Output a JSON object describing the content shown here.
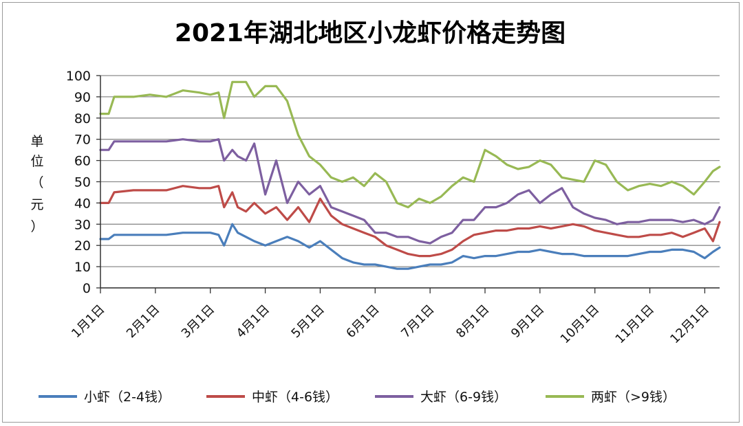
{
  "chart_data": {
    "type": "line",
    "title": "2021年湖北地区小龙虾价格走势图",
    "ylabel_chars": [
      "单",
      "位",
      "（",
      "元",
      "）"
    ],
    "ylim": [
      0,
      100
    ],
    "yticks": [
      0,
      10,
      20,
      30,
      40,
      50,
      60,
      70,
      80,
      90,
      100
    ],
    "grid": true,
    "legend_position": "bottom",
    "x_categories": [
      "1月1日",
      "2月1日",
      "3月1日",
      "4月1日",
      "5月1日",
      "6月1日",
      "7月1日",
      "8月1日",
      "9月1日",
      "10月1日",
      "11月1日",
      "12月1日"
    ],
    "x_domain": [
      0,
      11.27
    ],
    "series": [
      {
        "name": "小虾（2-4钱）",
        "color": "#4a7ebb",
        "x": [
          0,
          0.15,
          0.25,
          0.6,
          0.9,
          1.2,
          1.5,
          1.8,
          2.0,
          2.15,
          2.25,
          2.4,
          2.5,
          2.65,
          2.8,
          3.0,
          3.2,
          3.4,
          3.6,
          3.8,
          4.0,
          4.2,
          4.4,
          4.6,
          4.8,
          5.0,
          5.2,
          5.4,
          5.6,
          5.8,
          6.0,
          6.2,
          6.4,
          6.6,
          6.8,
          7.0,
          7.2,
          7.4,
          7.6,
          7.8,
          8.0,
          8.2,
          8.4,
          8.6,
          8.8,
          9.0,
          9.2,
          9.4,
          9.6,
          9.8,
          10.0,
          10.2,
          10.4,
          10.6,
          10.8,
          11.0,
          11.15,
          11.27
        ],
        "values": [
          23,
          23,
          25,
          25,
          25,
          25,
          26,
          26,
          26,
          25,
          20,
          30,
          26,
          24,
          22,
          20,
          22,
          24,
          22,
          19,
          22,
          18,
          14,
          12,
          11,
          11,
          10,
          9,
          9,
          10,
          11,
          11,
          12,
          15,
          14,
          15,
          15,
          16,
          17,
          17,
          18,
          17,
          16,
          16,
          15,
          15,
          15,
          15,
          15,
          16,
          17,
          17,
          18,
          18,
          17,
          14,
          17,
          19
        ]
      },
      {
        "name": "中虾（4-6钱）",
        "color": "#be4b48",
        "x": [
          0,
          0.15,
          0.25,
          0.6,
          0.9,
          1.2,
          1.5,
          1.8,
          2.0,
          2.15,
          2.25,
          2.4,
          2.5,
          2.65,
          2.8,
          3.0,
          3.2,
          3.4,
          3.6,
          3.8,
          4.0,
          4.2,
          4.4,
          4.6,
          4.8,
          5.0,
          5.2,
          5.4,
          5.6,
          5.8,
          6.0,
          6.2,
          6.4,
          6.6,
          6.8,
          7.0,
          7.2,
          7.4,
          7.6,
          7.8,
          8.0,
          8.2,
          8.4,
          8.6,
          8.8,
          9.0,
          9.2,
          9.4,
          9.6,
          9.8,
          10.0,
          10.2,
          10.4,
          10.6,
          10.8,
          11.0,
          11.15,
          11.27
        ],
        "values": [
          40,
          40,
          45,
          46,
          46,
          46,
          48,
          47,
          47,
          48,
          38,
          45,
          38,
          36,
          40,
          35,
          38,
          32,
          38,
          31,
          42,
          34,
          30,
          28,
          26,
          24,
          20,
          18,
          16,
          15,
          15,
          16,
          18,
          22,
          25,
          26,
          27,
          27,
          28,
          28,
          29,
          28,
          29,
          30,
          29,
          27,
          26,
          25,
          24,
          24,
          25,
          25,
          26,
          24,
          26,
          28,
          22,
          31
        ]
      },
      {
        "name": "大虾（6-9钱）",
        "color": "#7d5fa0",
        "x": [
          0,
          0.15,
          0.25,
          0.6,
          0.9,
          1.2,
          1.5,
          1.8,
          2.0,
          2.15,
          2.25,
          2.4,
          2.5,
          2.65,
          2.8,
          3.0,
          3.2,
          3.4,
          3.6,
          3.8,
          4.0,
          4.2,
          4.4,
          4.6,
          4.8,
          5.0,
          5.2,
          5.4,
          5.6,
          5.8,
          6.0,
          6.2,
          6.4,
          6.6,
          6.8,
          7.0,
          7.2,
          7.4,
          7.6,
          7.8,
          8.0,
          8.2,
          8.4,
          8.6,
          8.8,
          9.0,
          9.2,
          9.4,
          9.6,
          9.8,
          10.0,
          10.2,
          10.4,
          10.6,
          10.8,
          11.0,
          11.15,
          11.27
        ],
        "values": [
          65,
          65,
          69,
          69,
          69,
          69,
          70,
          69,
          69,
          70,
          60,
          65,
          62,
          60,
          68,
          44,
          60,
          40,
          50,
          44,
          48,
          38,
          36,
          34,
          32,
          26,
          26,
          24,
          24,
          22,
          21,
          24,
          26,
          32,
          32,
          38,
          38,
          40,
          44,
          46,
          40,
          44,
          47,
          38,
          35,
          33,
          32,
          30,
          31,
          31,
          32,
          32,
          32,
          31,
          32,
          30,
          32,
          38
        ]
      },
      {
        "name": "两虾（>9钱）",
        "color": "#98b954",
        "x": [
          0,
          0.15,
          0.25,
          0.6,
          0.9,
          1.2,
          1.5,
          1.8,
          2.0,
          2.15,
          2.25,
          2.4,
          2.5,
          2.65,
          2.8,
          3.0,
          3.2,
          3.4,
          3.6,
          3.8,
          4.0,
          4.2,
          4.4,
          4.6,
          4.8,
          5.0,
          5.2,
          5.4,
          5.6,
          5.8,
          6.0,
          6.2,
          6.4,
          6.6,
          6.8,
          7.0,
          7.2,
          7.4,
          7.6,
          7.8,
          8.0,
          8.2,
          8.4,
          8.6,
          8.8,
          9.0,
          9.2,
          9.4,
          9.6,
          9.8,
          10.0,
          10.2,
          10.4,
          10.6,
          10.8,
          11.0,
          11.15,
          11.27
        ],
        "values": [
          82,
          82,
          90,
          90,
          91,
          90,
          93,
          92,
          91,
          92,
          80,
          97,
          97,
          97,
          90,
          95,
          95,
          88,
          72,
          62,
          58,
          52,
          50,
          52,
          48,
          54,
          50,
          40,
          38,
          42,
          40,
          43,
          48,
          52,
          50,
          65,
          62,
          58,
          56,
          57,
          60,
          58,
          52,
          51,
          50,
          60,
          58,
          50,
          46,
          48,
          49,
          48,
          50,
          48,
          44,
          50,
          55,
          57
        ]
      }
    ]
  }
}
